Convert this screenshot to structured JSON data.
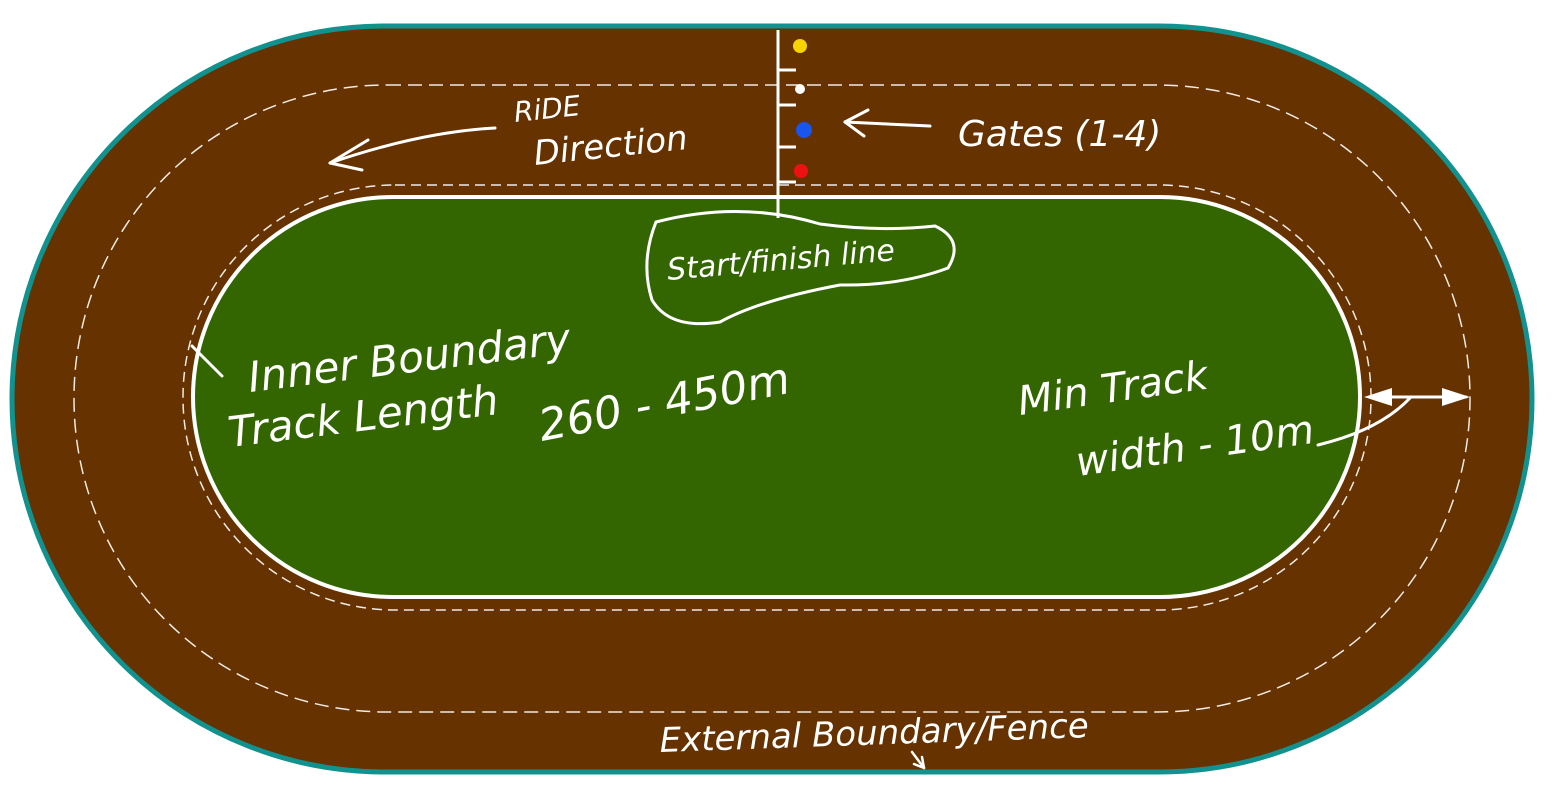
{
  "labels": {
    "ride_direction_line1": "RiDE",
    "ride_direction_line2": "Direction",
    "gates": "Gates (1-4)",
    "start_finish": "Start/finish line",
    "inner_boundary_line1": "Inner Boundary",
    "inner_boundary_line2": "Track Length",
    "track_length_value": "260 - 450m",
    "min_width_line1": "Min Track",
    "min_width_line2": "width - 10m",
    "external_boundary": "External Boundary/Fence"
  },
  "gates": [
    {
      "number": 1,
      "color": "#ee1111"
    },
    {
      "number": 2,
      "color": "#1a55ee"
    },
    {
      "number": 3,
      "color": "#ffffff"
    },
    {
      "number": 4,
      "color": "#f5d400"
    }
  ],
  "colors": {
    "track": "#653200",
    "infield": "#336600",
    "fence": "#12928f",
    "markings": "#ffffff"
  }
}
